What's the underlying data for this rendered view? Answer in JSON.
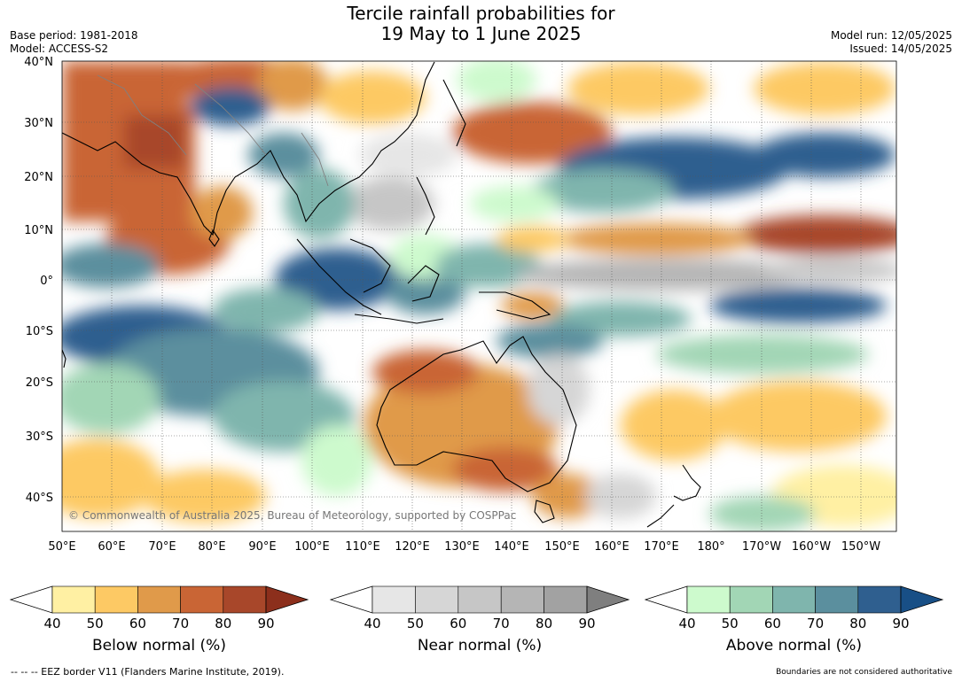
{
  "title": {
    "line1": "Tercile rainfall probabilities for",
    "line2": "19 May to 1 June 2025"
  },
  "meta": {
    "base_period": "Base period: 1981-2018",
    "model": "Model: ACCESS-S2",
    "model_run": "Model run: 12/05/2025",
    "issued": "Issued: 14/05/2025"
  },
  "map": {
    "copyright": "© Commonwealth of Australia 2025, Bureau of Meteorology, supported by COSPPac",
    "lat_labels": [
      "40°N",
      "30°N",
      "20°N",
      "10°N",
      "0°",
      "10°S",
      "20°S",
      "30°S",
      "40°S"
    ],
    "lon_labels": [
      "50°E",
      "60°E",
      "70°E",
      "80°E",
      "90°E",
      "100°E",
      "110°E",
      "120°E",
      "130°E",
      "140°E",
      "150°E",
      "160°E",
      "170°E",
      "180°",
      "170°W",
      "160°W",
      "150°W"
    ],
    "colors": {
      "ocean_white": "#ffffff",
      "coast": "#000000",
      "border": "#808080"
    }
  },
  "colorbars": [
    {
      "id": "below",
      "title": "Below normal (%)",
      "ticks": [
        "40",
        "50",
        "60",
        "70",
        "80",
        "90"
      ],
      "colors": [
        "#ffffff",
        "#fff0a3",
        "#fdc964",
        "#e09a4a",
        "#c96535",
        "#a8472a",
        "#8c2f1c"
      ]
    },
    {
      "id": "near",
      "title": "Near normal (%)",
      "ticks": [
        "40",
        "50",
        "60",
        "70",
        "80",
        "90"
      ],
      "colors": [
        "#ffffff",
        "#e6e6e6",
        "#d6d6d6",
        "#c6c6c6",
        "#b5b5b5",
        "#a2a2a2",
        "#7f7f7f"
      ]
    },
    {
      "id": "above",
      "title": "Above normal (%)",
      "ticks": [
        "40",
        "50",
        "60",
        "70",
        "80",
        "90"
      ],
      "colors": [
        "#ffffff",
        "#cdfacd",
        "#a2d6b5",
        "#7fb5ad",
        "#5b8f9e",
        "#2f5f8f",
        "#184f86"
      ]
    }
  ],
  "footer": {
    "left": "--  --  -- EEZ border V11 (Flanders Marine Institute, 2019).",
    "right": "Boundaries are not considered authoritative"
  }
}
